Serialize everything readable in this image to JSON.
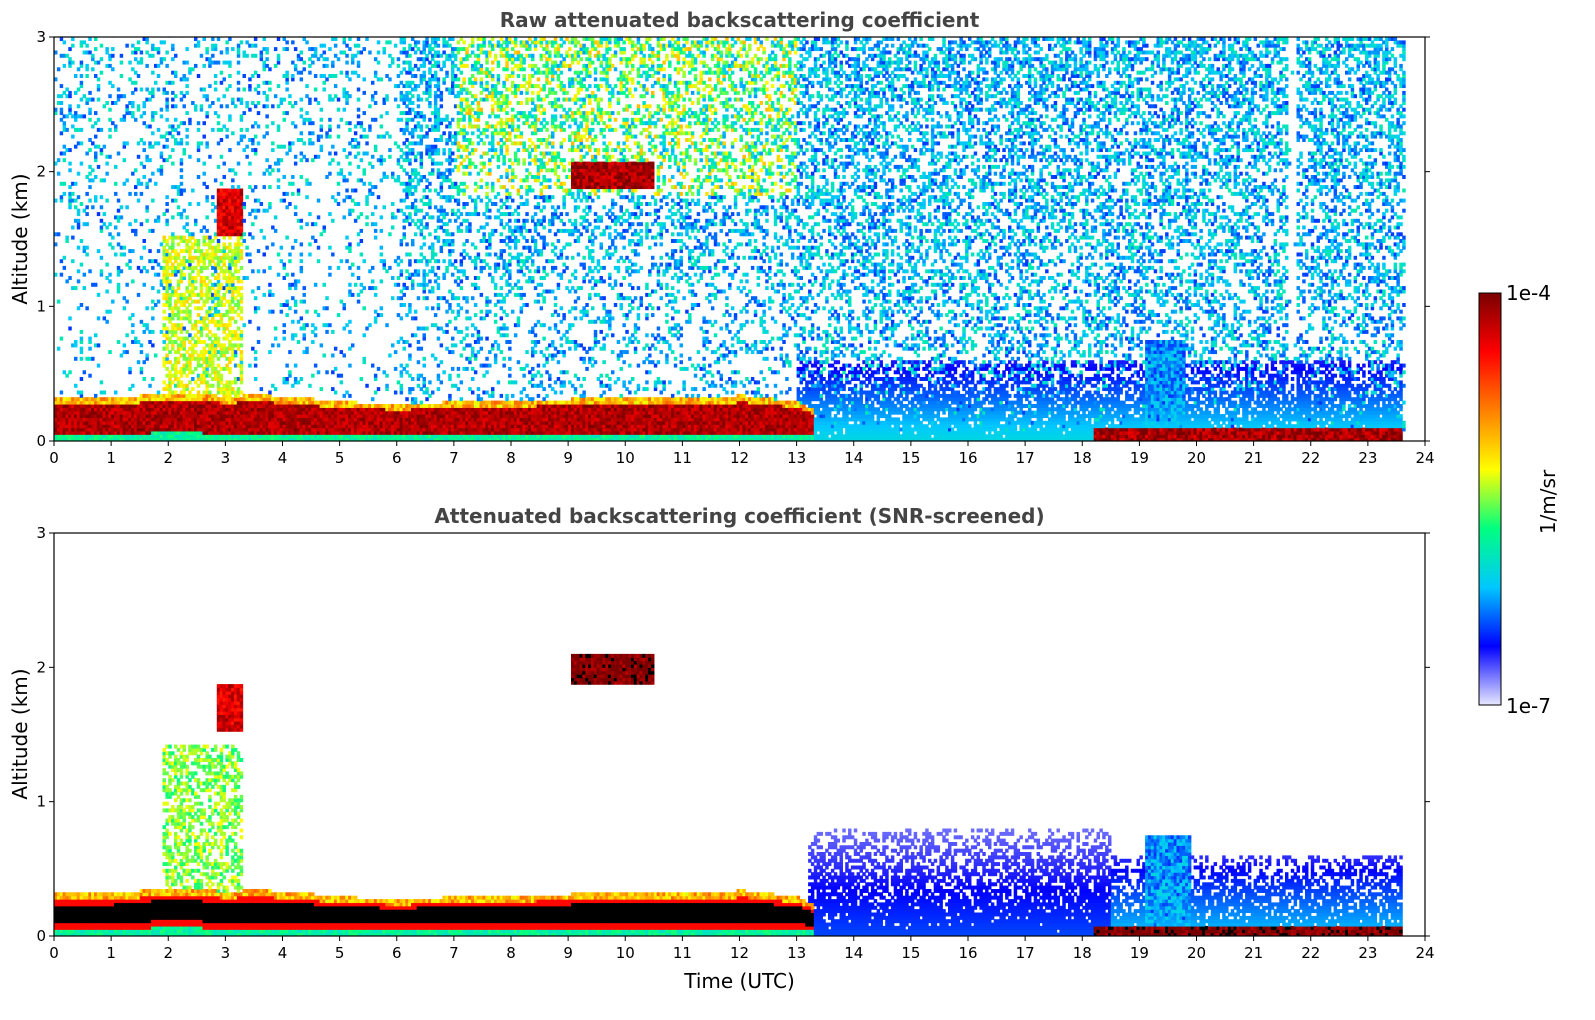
{
  "chart_data": [
    {
      "type": "heatmap",
      "title": "Raw attenuated backscattering coefficient",
      "xlabel": "",
      "ylabel": "Altitude (km)",
      "xlim": [
        0,
        24
      ],
      "ylim": [
        0,
        3
      ],
      "xticks": [
        "0",
        "1",
        "2",
        "3",
        "4",
        "5",
        "6",
        "7",
        "8",
        "9",
        "10",
        "11",
        "12",
        "13",
        "14",
        "15",
        "16",
        "17",
        "18",
        "19",
        "20",
        "21",
        "22",
        "23",
        "24"
      ],
      "yticks": [
        "0",
        "1",
        "2",
        "3"
      ],
      "background": "noisy",
      "boundary_layer_top_km": [
        [
          0,
          0.3
        ],
        [
          1,
          0.3
        ],
        [
          2,
          0.35
        ],
        [
          3,
          0.32
        ],
        [
          3.5,
          0.33
        ],
        [
          4,
          0.32
        ],
        [
          5,
          0.28
        ],
        [
          6,
          0.26
        ],
        [
          7,
          0.28
        ],
        [
          8,
          0.29
        ],
        [
          9,
          0.3
        ],
        [
          10,
          0.32
        ],
        [
          11,
          0.31
        ],
        [
          11.7,
          0.3
        ],
        [
          12,
          0.33
        ],
        [
          13,
          0.28
        ],
        [
          13.3,
          0.22
        ]
      ],
      "features": [
        {
          "x0": 1.9,
          "x1": 3.25,
          "y0": 0.3,
          "y1": 1.5,
          "level": 0.55,
          "label": "convective plumes"
        },
        {
          "x0": 2.8,
          "x1": 3.25,
          "y0": 1.5,
          "y1": 1.85,
          "level": 0.9,
          "label": "cloud"
        },
        {
          "x0": 9.0,
          "x1": 10.5,
          "y0": 1.85,
          "y1": 2.05,
          "level": 0.95,
          "label": "cloud"
        },
        {
          "x0": 13.0,
          "x1": 23.6,
          "y0": 0.0,
          "y1": 0.6,
          "level": 0.2,
          "label": "aerosol layer"
        },
        {
          "x0": 19.1,
          "x1": 19.8,
          "y0": 0.0,
          "y1": 0.75,
          "level": 0.25,
          "label": "plume"
        },
        {
          "x0": 18.2,
          "x1": 23.6,
          "y0": 0.0,
          "y1": 0.08,
          "level": 0.95,
          "label": "fog near ground"
        }
      ]
    },
    {
      "type": "heatmap",
      "title": "Attenuated backscattering coefficient (SNR-screened)",
      "xlabel": "Time (UTC)",
      "ylabel": "Altitude (km)",
      "xlim": [
        0,
        24
      ],
      "ylim": [
        0,
        3
      ],
      "xticks": [
        "0",
        "1",
        "2",
        "3",
        "4",
        "5",
        "6",
        "7",
        "8",
        "9",
        "10",
        "11",
        "12",
        "13",
        "14",
        "15",
        "16",
        "17",
        "18",
        "19",
        "20",
        "21",
        "22",
        "23",
        "24"
      ],
      "yticks": [
        "0",
        "1",
        "2",
        "3"
      ],
      "background": "screened",
      "boundary_layer_top_km": [
        [
          0,
          0.3
        ],
        [
          1,
          0.3
        ],
        [
          2,
          0.35
        ],
        [
          3,
          0.32
        ],
        [
          3.5,
          0.33
        ],
        [
          4,
          0.32
        ],
        [
          5,
          0.28
        ],
        [
          6,
          0.26
        ],
        [
          7,
          0.28
        ],
        [
          8,
          0.29
        ],
        [
          9,
          0.3
        ],
        [
          10,
          0.32
        ],
        [
          11,
          0.31
        ],
        [
          11.7,
          0.3
        ],
        [
          12,
          0.33
        ],
        [
          13,
          0.28
        ],
        [
          13.3,
          0.22
        ]
      ],
      "features": [
        {
          "x0": 1.9,
          "x1": 3.25,
          "y0": 0.3,
          "y1": 1.4,
          "level": 0.5,
          "label": "convective plumes"
        },
        {
          "x0": 2.8,
          "x1": 3.25,
          "y0": 1.5,
          "y1": 1.85,
          "level": 0.9,
          "label": "cloud"
        },
        {
          "x0": 9.0,
          "x1": 10.5,
          "y0": 1.85,
          "y1": 2.08,
          "level": 1.0,
          "label": "cloud"
        },
        {
          "x0": 13.2,
          "x1": 18.5,
          "y0": 0.0,
          "y1": 0.8,
          "level": 0.12,
          "label": "aerosol layer"
        },
        {
          "x0": 18.5,
          "x1": 23.6,
          "y0": 0.0,
          "y1": 0.6,
          "level": 0.18,
          "label": "aerosol layer"
        },
        {
          "x0": 19.1,
          "x1": 19.9,
          "y0": 0.0,
          "y1": 0.75,
          "level": 0.25,
          "label": "plume"
        },
        {
          "x0": 18.2,
          "x1": 23.6,
          "y0": 0.0,
          "y1": 0.07,
          "level": 1.0,
          "label": "fog near ground"
        }
      ]
    }
  ],
  "colorbar": {
    "label": "1/m/sr",
    "max_label": "1e-4",
    "min_label": "1e-7",
    "stops": [
      "#e8e8ff",
      "#0000ff",
      "#00c8ff",
      "#00ff80",
      "#ffff00",
      "#ff8000",
      "#ff0000",
      "#7a0000"
    ]
  },
  "colors": {
    "title": "#444444",
    "saturated": "#000000"
  }
}
